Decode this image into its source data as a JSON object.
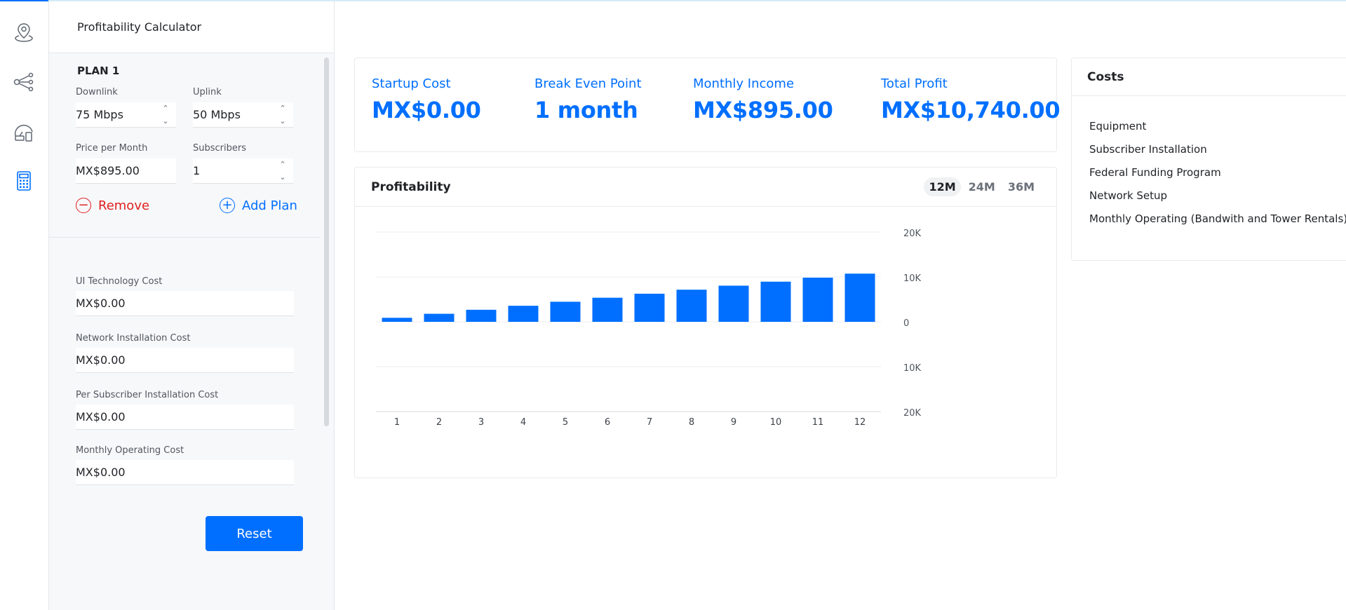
{
  "panel": {
    "title": "Profitability Calculator",
    "plan": {
      "title": "PLAN 1",
      "downlink_label": "Downlink",
      "downlink_value": "75 Mbps",
      "uplink_label": "Uplink",
      "uplink_value": "50 Mbps",
      "price_label": "Price per Month",
      "price_value": "MX$895.00",
      "subscribers_label": "Subscribers",
      "subscribers_value": "1",
      "remove_label": "Remove",
      "add_label": "Add Plan"
    },
    "costs": [
      {
        "label": "UI Technology Cost",
        "value": "MX$0.00"
      },
      {
        "label": "Network Installation Cost",
        "value": "MX$0.00"
      },
      {
        "label": "Per Subscriber Installation Cost",
        "value": "MX$0.00"
      },
      {
        "label": "Monthly Operating Cost",
        "value": "MX$0.00"
      }
    ],
    "reset_label": "Reset"
  },
  "stats": {
    "startup_label": "Startup Cost",
    "startup_value": "MX$0.00",
    "breakeven_label": "Break Even Point",
    "breakeven_value": "1 month",
    "income_label": "Monthly Income",
    "income_value": "MX$895.00",
    "profit_label": "Total Profit",
    "profit_value": "MX$10,740.00"
  },
  "profitability": {
    "title": "Profitability",
    "ranges": [
      "12M",
      "24M",
      "36M"
    ],
    "active_range": "12M"
  },
  "costs_card": {
    "title": "Costs",
    "items": [
      "Equipment",
      "Subscriber Installation",
      "Federal Funding Program",
      "Network Setup",
      "Monthly Operating (Bandwith and Tower Rentals)"
    ]
  },
  "colors": {
    "accent": "#006fff",
    "danger": "#e0211f"
  },
  "chart_data": {
    "type": "bar",
    "categories": [
      "1",
      "2",
      "3",
      "4",
      "5",
      "6",
      "7",
      "8",
      "9",
      "10",
      "11",
      "12"
    ],
    "values": [
      895,
      1790,
      2685,
      3580,
      4475,
      5370,
      6265,
      7160,
      8055,
      8950,
      9845,
      10740
    ],
    "ylim": [
      -20000,
      20000
    ],
    "yticks": [
      20000,
      10000,
      0,
      -10000,
      -20000
    ],
    "ytick_labels": [
      "20K",
      "10K",
      "0",
      "10K",
      "20K"
    ],
    "grid": true,
    "bar_color": "#006fff"
  }
}
